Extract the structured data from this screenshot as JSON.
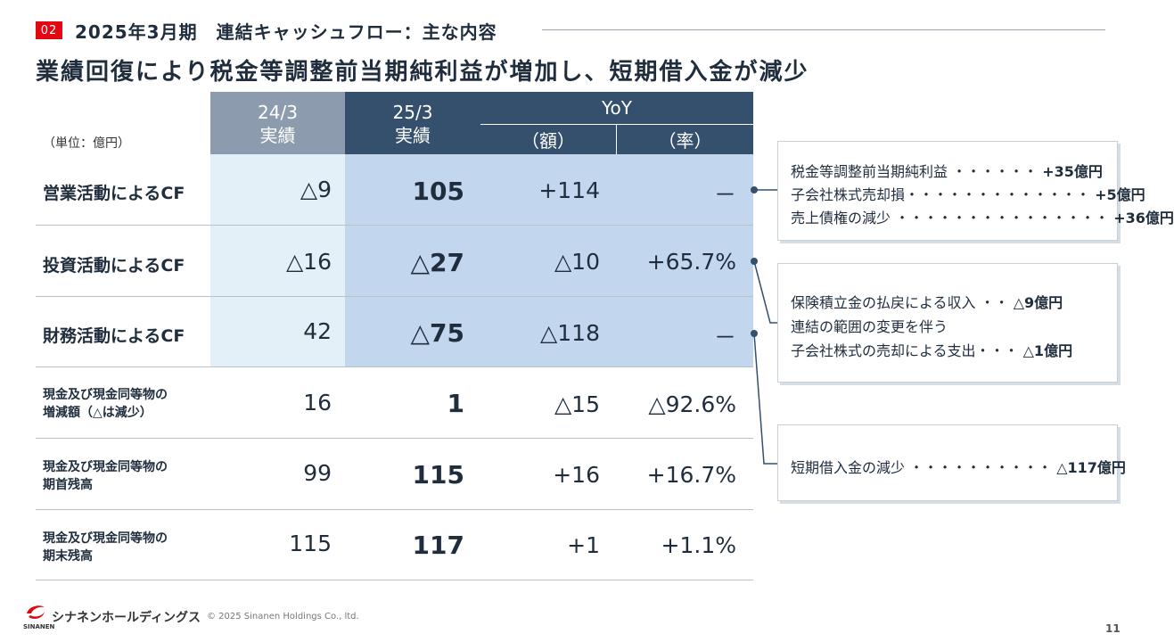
{
  "header": {
    "section_number": "02",
    "section_title": "2025年3月期　連結キャッシュフロー：主な内容",
    "headline": "業績回復により税金等調整前当期純利益が増加し、短期借入金が減少"
  },
  "table": {
    "unit_label": "（単位：億円）",
    "columns": {
      "prev_year": "24/3",
      "prev_sub": "実績",
      "curr_year": "25/3",
      "curr_sub": "実績",
      "yoy": "YoY",
      "yoy_amount": "（額）",
      "yoy_rate": "（率）"
    },
    "rows": [
      {
        "label": "営業活動によるCF",
        "prev": "△9",
        "curr": "105",
        "amount": "+114",
        "rate": "－"
      },
      {
        "label": "投資活動によるCF",
        "prev": "△16",
        "curr": "△27",
        "amount": "△10",
        "rate": "+65.7%"
      },
      {
        "label": "財務活動によるCF",
        "prev": "42",
        "curr": "△75",
        "amount": "△118",
        "rate": "－"
      },
      {
        "label_line1": "現金及び現金同等物の",
        "label_line2": "増減額（△は減少）",
        "prev": "16",
        "curr": "1",
        "amount": "△15",
        "rate": "△92.6%"
      },
      {
        "label_line1": "現金及び現金同等物の",
        "label_line2": "期首残高",
        "prev": "99",
        "curr": "115",
        "amount": "+16",
        "rate": "+16.7%"
      },
      {
        "label_line1": "現金及び現金同等物の",
        "label_line2": "期末残高",
        "prev": "115",
        "curr": "117",
        "amount": "+1",
        "rate": "+1.1%"
      }
    ]
  },
  "callouts": {
    "operating": [
      {
        "text": "税金等調整前当期純利益 ・・・・・・",
        "amount": "+35億円"
      },
      {
        "text": "子会社株式売却損・・・・・・・・・・・・・",
        "amount": "+5億円"
      },
      {
        "text": "売上債権の減少 ・・・・・・・・・・・・・・・",
        "amount": "+36億円"
      }
    ],
    "investing": [
      {
        "text": "保険積立金の払戻による収入 ・・",
        "amount": "△9億円"
      },
      {
        "text": "連結の範囲の変更を伴う",
        "amount": ""
      },
      {
        "text": "子会社株式の売却による支出・・・",
        "amount": "△1億円"
      }
    ],
    "financing": [
      {
        "text": "短期借入金の減少 ・・・・・・・・・・",
        "amount": "△117億円"
      }
    ]
  },
  "footer": {
    "company_name": "シナネンホールディングス",
    "logo_sub": "SINANEN",
    "copyright": "© 2025 Sinanen Holdings Co., ltd.",
    "page_number": "11"
  },
  "colors": {
    "accent_red": "#e30613",
    "header_navy": "#34506d",
    "header_gray": "#8c9bad",
    "shade_light": "#e4f0f8",
    "shade_blue": "#c2d6ed"
  }
}
